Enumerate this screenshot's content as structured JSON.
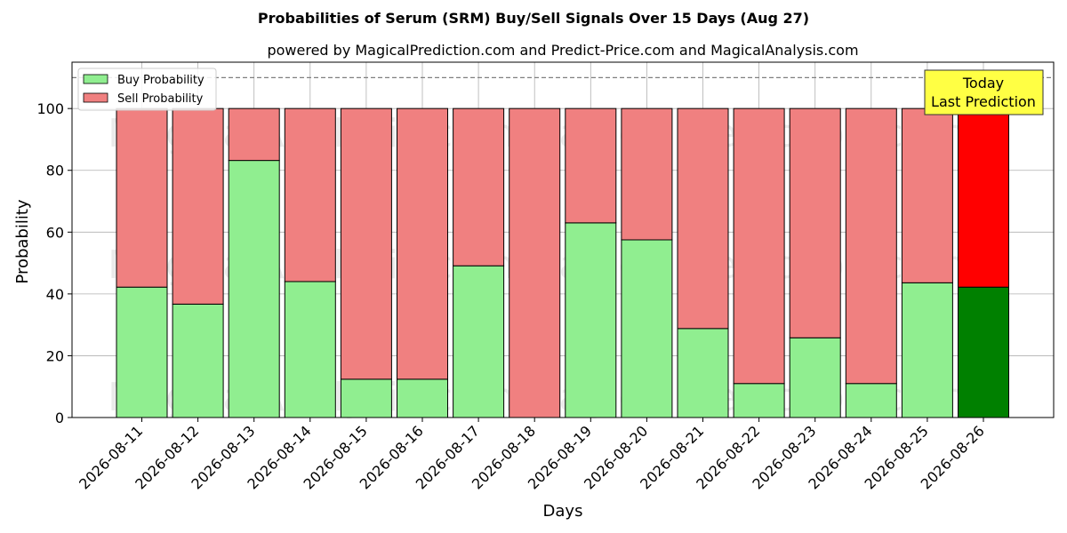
{
  "chart_data": {
    "type": "bar",
    "stacked": true,
    "title": "Probabilities of Serum (SRM) Buy/Sell Signals Over 15 Days (Aug 27)",
    "subtitle": "powered by MagicalPrediction.com and Predict-Price.com and MagicalAnalysis.com",
    "xlabel": "Days",
    "ylabel": "Probability",
    "ylim": [
      0,
      115
    ],
    "yticks": [
      0,
      20,
      40,
      60,
      80,
      100
    ],
    "grid": true,
    "legend_position": "top-left",
    "reference_line": 110,
    "categories": [
      "2026-08-11",
      "2026-08-12",
      "2026-08-13",
      "2026-08-14",
      "2026-08-15",
      "2026-08-16",
      "2026-08-17",
      "2026-08-18",
      "2026-08-19",
      "2026-08-20",
      "2026-08-21",
      "2026-08-22",
      "2026-08-23",
      "2026-08-24",
      "2026-08-25",
      "2026-08-26"
    ],
    "series": [
      {
        "name": "Buy Probability",
        "color": "#90ee90",
        "values": [
          42.2,
          36.7,
          83.2,
          44.0,
          12.4,
          12.4,
          49.1,
          0.0,
          63.0,
          57.5,
          28.8,
          11.0,
          25.8,
          11.0,
          43.6,
          42.2
        ]
      },
      {
        "name": "Sell Probability",
        "color": "#f08080",
        "values": [
          57.8,
          63.3,
          16.8,
          56.0,
          87.6,
          87.6,
          50.9,
          100.0,
          37.0,
          42.5,
          71.2,
          89.0,
          74.2,
          89.0,
          56.4,
          57.8
        ]
      }
    ],
    "highlight": {
      "index": 15,
      "buy_color": "#008000",
      "sell_color": "#ff0000"
    },
    "annotation": {
      "lines": [
        "Today",
        "Last Prediction"
      ],
      "color": "#ffff44"
    },
    "watermarks": [
      "MagicalAnalysis.com",
      "MagicalPrediction.com"
    ]
  }
}
